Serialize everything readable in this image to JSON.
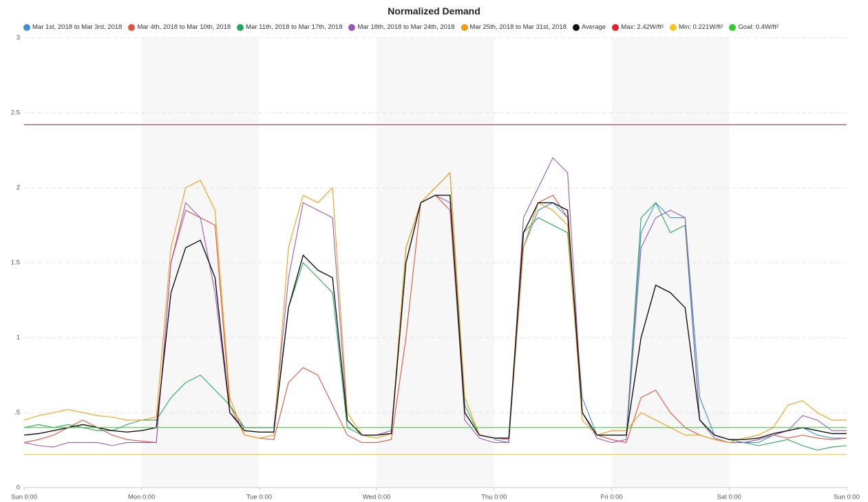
{
  "chart_data": {
    "type": "line",
    "title": "Normalized Demand",
    "x": [
      0,
      3,
      6,
      9,
      12,
      15,
      18,
      21,
      24,
      27,
      30,
      33,
      36,
      39,
      42,
      45,
      48,
      51,
      54,
      57,
      60,
      63,
      66,
      69,
      72,
      75,
      78,
      81,
      84,
      87,
      90,
      93,
      96,
      99,
      102,
      105,
      108,
      111,
      114,
      117,
      120,
      123,
      126,
      129,
      132,
      135,
      138,
      141,
      144,
      147,
      150,
      153,
      156,
      159,
      162,
      165,
      168
    ],
    "xlim": [
      0,
      168
    ],
    "xticks": [
      {
        "value": 0,
        "label": "Sun 0:00"
      },
      {
        "value": 24,
        "label": "Mon 0:00"
      },
      {
        "value": 48,
        "label": "Tue 0:00"
      },
      {
        "value": 72,
        "label": "Wed 0:00"
      },
      {
        "value": 96,
        "label": "Thu 0:00"
      },
      {
        "value": 120,
        "label": "Fri 0:00"
      },
      {
        "value": 144,
        "label": "Sat 0:00"
      },
      {
        "value": 168,
        "label": "Sun 0:00"
      }
    ],
    "ylim": [
      0,
      3
    ],
    "yticks": [
      0,
      {
        "value": 0.5,
        "label": ".5"
      },
      1,
      1.5,
      2,
      2.5,
      3
    ],
    "grid": true,
    "series": [
      {
        "name": "Mar 1st, 2018 to Mar 3rd, 2018",
        "color": "#3d8fd6",
        "values": [
          null,
          null,
          null,
          null,
          null,
          null,
          null,
          null,
          null,
          null,
          null,
          null,
          null,
          null,
          null,
          null,
          null,
          null,
          null,
          null,
          null,
          null,
          null,
          null,
          null,
          null,
          null,
          null,
          null,
          null,
          null,
          null,
          0.32,
          0.3,
          1.6,
          1.85,
          1.9,
          1.8,
          0.6,
          0.35,
          0.35,
          0.35,
          1.7,
          1.9,
          1.8,
          1.8,
          0.6,
          0.35,
          0.32,
          0.3,
          0.3,
          0.35,
          0.38,
          0.4,
          0.35,
          0.33,
          0.33
        ]
      },
      {
        "name": "Mar 4th, 2018 to Mar 10th, 2018",
        "color": "#e4533f",
        "values": [
          0.3,
          0.32,
          0.35,
          0.4,
          0.45,
          0.4,
          0.35,
          0.32,
          0.31,
          0.3,
          1.5,
          1.85,
          1.8,
          1.75,
          0.55,
          0.35,
          0.33,
          0.32,
          0.7,
          0.8,
          0.75,
          0.55,
          0.35,
          0.3,
          0.3,
          0.32,
          1.0,
          1.9,
          1.95,
          1.85,
          0.5,
          0.35,
          0.33,
          0.32,
          1.6,
          1.9,
          1.95,
          1.8,
          0.5,
          0.35,
          0.32,
          0.3,
          0.6,
          0.65,
          0.5,
          0.4,
          0.35,
          0.32,
          0.3,
          0.3,
          0.32,
          0.35,
          0.33,
          0.35,
          0.33,
          0.32,
          0.33
        ]
      },
      {
        "name": "Mar 11th, 2018 to Mar 17th, 2018",
        "color": "#27a75b",
        "values": [
          0.4,
          0.42,
          0.4,
          0.42,
          0.4,
          0.38,
          0.38,
          0.42,
          0.45,
          0.45,
          0.6,
          0.7,
          0.75,
          0.65,
          0.55,
          0.4,
          0.4,
          0.4,
          1.2,
          1.5,
          1.4,
          1.3,
          0.4,
          0.35,
          0.35,
          0.36,
          1.6,
          1.9,
          2.0,
          2.1,
          0.55,
          0.35,
          0.33,
          0.33,
          1.7,
          1.8,
          1.75,
          1.7,
          0.5,
          0.35,
          0.35,
          0.35,
          1.8,
          1.9,
          1.7,
          1.75,
          0.45,
          0.35,
          0.32,
          0.3,
          0.28,
          0.3,
          0.32,
          0.28,
          0.25,
          0.27,
          0.28
        ]
      },
      {
        "name": "Mar 18th, 2018 to Mar 24th, 2018",
        "color": "#9b59b6",
        "values": [
          0.3,
          0.28,
          0.27,
          0.3,
          0.3,
          0.3,
          0.28,
          0.3,
          0.3,
          0.3,
          1.5,
          1.9,
          1.8,
          1.3,
          0.5,
          0.4,
          0.4,
          0.4,
          1.4,
          1.9,
          1.85,
          1.8,
          0.45,
          0.35,
          0.35,
          0.38,
          1.5,
          1.9,
          1.95,
          1.9,
          0.45,
          0.33,
          0.3,
          0.3,
          1.8,
          2.0,
          2.2,
          2.1,
          0.5,
          0.33,
          0.3,
          0.32,
          1.6,
          1.8,
          1.85,
          1.8,
          0.45,
          0.33,
          0.3,
          0.3,
          0.32,
          0.35,
          0.38,
          0.48,
          0.45,
          0.38,
          0.38
        ]
      },
      {
        "name": "Mar 25th, 2018 to Mar 31st, 2018",
        "color": "#f39c12",
        "values": [
          0.45,
          0.48,
          0.5,
          0.52,
          0.5,
          0.48,
          0.47,
          0.45,
          0.45,
          0.47,
          1.6,
          2.0,
          2.05,
          1.85,
          0.6,
          0.35,
          0.33,
          0.35,
          1.6,
          1.95,
          1.9,
          2.0,
          0.5,
          0.35,
          0.33,
          0.36,
          1.6,
          1.9,
          2.0,
          2.1,
          0.6,
          0.35,
          0.33,
          0.33,
          1.6,
          1.9,
          1.85,
          1.75,
          0.45,
          0.35,
          0.38,
          0.38,
          0.5,
          0.45,
          0.4,
          0.35,
          0.35,
          0.32,
          0.3,
          0.33,
          0.35,
          0.4,
          0.55,
          0.58,
          0.5,
          0.45,
          0.45
        ]
      },
      {
        "name": "Average",
        "color": "#111111",
        "values": [
          0.35,
          0.36,
          0.38,
          0.4,
          0.42,
          0.4,
          0.38,
          0.37,
          0.38,
          0.4,
          1.3,
          1.6,
          1.65,
          1.4,
          0.5,
          0.38,
          0.37,
          0.37,
          1.2,
          1.55,
          1.45,
          1.4,
          0.45,
          0.35,
          0.35,
          0.36,
          1.5,
          1.9,
          1.95,
          1.95,
          0.5,
          0.35,
          0.33,
          0.33,
          1.7,
          1.9,
          1.9,
          1.85,
          0.5,
          0.35,
          0.35,
          0.35,
          1.0,
          1.35,
          1.3,
          1.2,
          0.45,
          0.35,
          0.32,
          0.32,
          0.33,
          0.36,
          0.38,
          0.4,
          0.38,
          0.36,
          0.36
        ]
      }
    ],
    "reference_lines": [
      {
        "name": "Max: 2.42W/ft²",
        "value": 2.42,
        "color": "#e8222b"
      },
      {
        "name": "Min: 0.221W/ft²",
        "value": 0.221,
        "color": "#f5c518"
      },
      {
        "name": "Goal: 0.4W/ft²",
        "value": 0.4,
        "color": "#2ecc2e"
      }
    ]
  }
}
